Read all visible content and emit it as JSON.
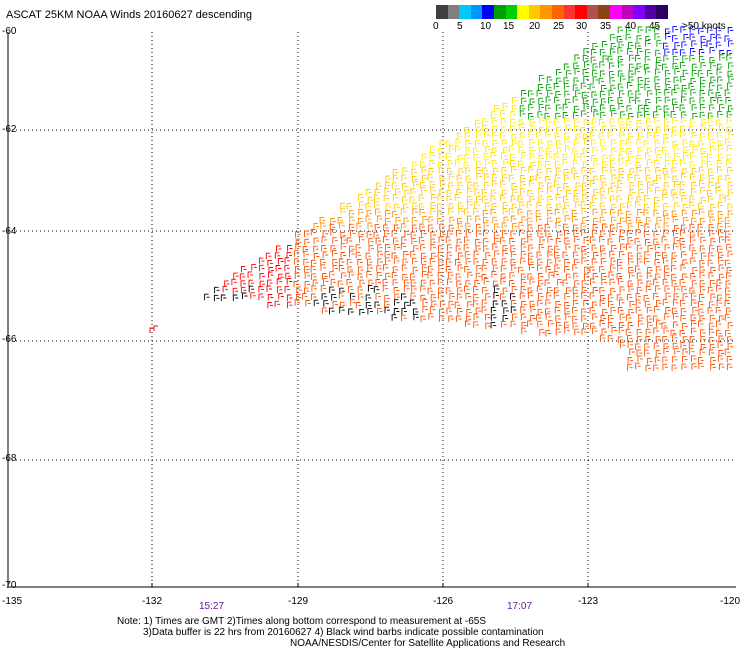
{
  "title": "ASCAT 25KM NOAA Winds 20160627 descending",
  "scale": {
    "labels": [
      "0",
      "5",
      "10",
      "15",
      "20",
      "25",
      "30",
      "35",
      "40",
      "45",
      ">50 knots"
    ],
    "colors": [
      "#404040",
      "#808080",
      "#00c8ff",
      "#0096ff",
      "#0000ff",
      "#00a000",
      "#00d000",
      "#ffff00",
      "#ffc800",
      "#ff9600",
      "#ff6400",
      "#ff3232",
      "#ff0000",
      "#b05050",
      "#8b4513",
      "#ff00ff",
      "#c000c0",
      "#8000ff",
      "#5000a0",
      "#2a0060"
    ]
  },
  "axes": {
    "lat_labels": [
      "-60",
      "-62",
      "-64",
      "-66",
      "-68",
      "-70"
    ],
    "lon_labels": [
      "-135",
      "-132",
      "-129",
      "-126",
      "-123",
      "-120"
    ]
  },
  "times": {
    "left": "15:27",
    "right": "17:07"
  },
  "notes": {
    "line1": "Note: 1) Times are GMT 2)Times along bottom correspond to measurement at -65S",
    "line2": "3)Data buffer is 22 hrs from 20160627 4) Black wind barbs indicate possible contamination",
    "line3": "NOAA/NESDIS/Center for Satellite Applications and Research"
  },
  "colors": {
    "blue": "#0000ff",
    "green": "#00a000",
    "yellow": "#ffe600",
    "gold": "#ffc800",
    "orange": "#ff8c00",
    "redorange": "#ff5000",
    "red": "#ff0000",
    "contam": "#000000",
    "grid": "#000000"
  }
}
